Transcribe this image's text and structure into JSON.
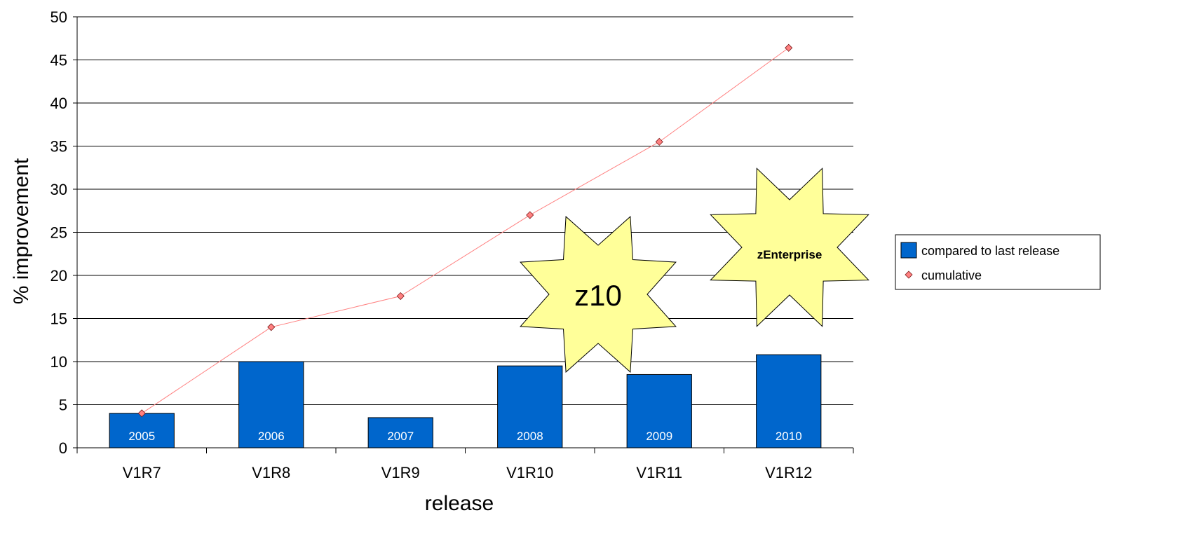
{
  "chart_data": {
    "type": "bar",
    "categories": [
      "V1R7",
      "V1R8",
      "V1R9",
      "V1R10",
      "V1R11",
      "V1R12"
    ],
    "bar_labels": [
      "2005",
      "2006",
      "2007",
      "2008",
      "2009",
      "2010"
    ],
    "series": [
      {
        "name": "compared to last release",
        "type": "bar",
        "color": "#0066CC",
        "values": [
          4,
          10,
          3.5,
          9.5,
          8.5,
          10.8
        ]
      },
      {
        "name": "cumulative",
        "type": "line",
        "color": "#FF8080",
        "values": [
          4,
          14,
          17.6,
          27,
          35.5,
          46.4
        ]
      }
    ],
    "xlabel": "release",
    "ylabel": "% improvement",
    "ylim": [
      0,
      50
    ],
    "yticks": [
      "0",
      "5",
      "10",
      "15",
      "20",
      "25",
      "30",
      "35",
      "40",
      "45",
      "50"
    ],
    "grid": true,
    "legend_position": "right",
    "annotations": [
      {
        "text": "z10",
        "shape": "star",
        "fill": "#FFFF99"
      },
      {
        "text": "zEnterprise",
        "shape": "star",
        "fill": "#FFFF99"
      }
    ]
  }
}
